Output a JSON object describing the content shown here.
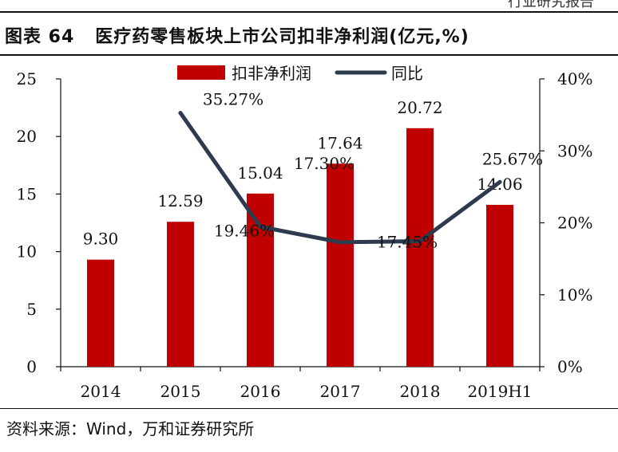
{
  "header": {
    "report_fragment": "行业研究报告"
  },
  "figure": {
    "label": "图表 64",
    "title": "医疗药零售板块上市公司扣非净利润(亿元,%)"
  },
  "source": "资料来源：Wind，万和证券研究所",
  "colors": {
    "bar": "#c00000",
    "line": "#2e3b4e",
    "axis": "#111111"
  },
  "chart_data": {
    "type": "bar",
    "categories": [
      "2014",
      "2015",
      "2016",
      "2017",
      "2018",
      "2019H1"
    ],
    "series": [
      {
        "name": "扣非净利润",
        "type": "bar",
        "axis": "left",
        "values": [
          9.3,
          12.59,
          15.04,
          17.64,
          20.72,
          14.06
        ],
        "labels": [
          "9.30",
          "12.59",
          "15.04",
          "17.64",
          "20.72",
          "14.06"
        ]
      },
      {
        "name": "同比",
        "type": "line",
        "axis": "right",
        "values": [
          null,
          35.27,
          19.46,
          17.3,
          17.45,
          25.67
        ],
        "labels": [
          "",
          "35.27%",
          "19.46%",
          "17.30%",
          "17.45%",
          "25.67%"
        ]
      }
    ],
    "y_left": {
      "min": 0,
      "max": 25,
      "ticks": [
        "0",
        "5",
        "10",
        "15",
        "20",
        "25"
      ]
    },
    "y_right": {
      "min": 0,
      "max": 40,
      "ticks": [
        "0%",
        "10%",
        "20%",
        "30%",
        "40%"
      ]
    },
    "legend": "top-center",
    "grid": false
  }
}
